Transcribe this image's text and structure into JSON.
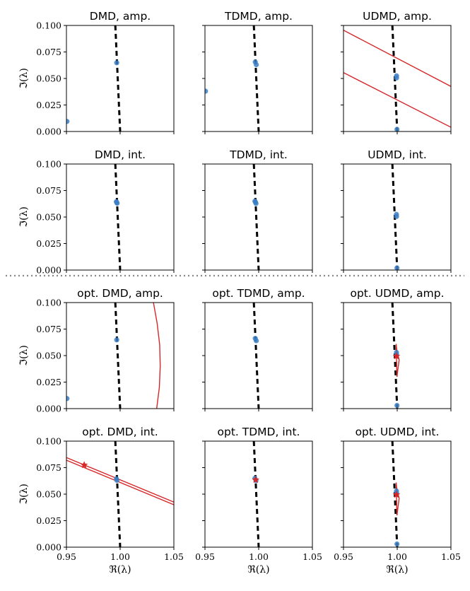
{
  "figure": {
    "xlim": [
      0.95,
      1.05
    ],
    "ylim": [
      0.0,
      0.1
    ],
    "xticks": [
      "0.95",
      "1.00",
      "1.05"
    ],
    "yticks": [
      "0.000",
      "0.025",
      "0.050",
      "0.075",
      "0.100"
    ],
    "xlabel": "ℜ(λ)",
    "ylabel": "ℑ(λ)",
    "colors": {
      "points": "#3b7fc4",
      "reference": "#000000",
      "boundary": "#d62728",
      "separator": "#888888"
    }
  },
  "reference_curve": {
    "x": [
      0.9955,
      1.0
    ],
    "y": [
      0.1,
      0.0
    ]
  },
  "chart_data": [
    {
      "type": "scatter",
      "title": "DMD, amp.",
      "points": [
        [
          0.9968,
          0.0648
        ],
        [
          0.9505,
          0.0095
        ]
      ]
    },
    {
      "type": "scatter",
      "title": "TDMD, amp.",
      "points": [
        [
          0.9968,
          0.0655
        ],
        [
          0.9978,
          0.063
        ],
        [
          0.9505,
          0.038
        ]
      ]
    },
    {
      "type": "scatter",
      "title": "UDMD, amp.",
      "points": [
        [
          0.9994,
          0.0525
        ],
        [
          0.9994,
          0.0505
        ],
        [
          0.9998,
          0.002
        ]
      ],
      "boundary": [
        {
          "x": [
            0.95,
            1.05
          ],
          "y": [
            0.0955,
            0.0425
          ]
        },
        {
          "x": [
            0.95,
            1.05
          ],
          "y": [
            0.0555,
            0.004
          ]
        }
      ]
    },
    {
      "type": "scatter",
      "title": "DMD, int.",
      "points": [
        [
          0.9965,
          0.0645
        ],
        [
          0.9972,
          0.063
        ],
        [
          0.9968,
          0.0638
        ]
      ]
    },
    {
      "type": "scatter",
      "title": "TDMD, int.",
      "points": [
        [
          0.9965,
          0.065
        ],
        [
          0.9975,
          0.0628
        ],
        [
          0.997,
          0.064
        ]
      ]
    },
    {
      "type": "scatter",
      "title": "UDMD, int.",
      "points": [
        [
          0.9993,
          0.0525
        ],
        [
          0.9994,
          0.0505
        ],
        [
          0.9998,
          0.002
        ]
      ]
    },
    {
      "type": "scatter",
      "title": "opt. DMD, amp.",
      "points": [
        [
          0.9968,
          0.0648
        ],
        [
          0.9505,
          0.0095
        ]
      ],
      "boundary": [
        {
          "x": [
            1.031,
            1.0345,
            1.0368,
            1.0373,
            1.0365,
            1.034
          ],
          "y": [
            0.1,
            0.08,
            0.06,
            0.04,
            0.02,
            0.0
          ]
        }
      ]
    },
    {
      "type": "scatter",
      "title": "opt. TDMD, amp.",
      "points": [
        [
          0.9968,
          0.0662
        ],
        [
          0.9978,
          0.064
        ]
      ]
    },
    {
      "type": "scatter",
      "title": "opt. UDMD, amp.",
      "points": [
        [
          0.9993,
          0.053
        ],
        [
          0.9994,
          0.051
        ],
        [
          0.9998,
          0.003
        ]
      ],
      "boundary": [
        {
          "x": [
            0.999,
            0.9995,
            1.0018,
            1.0005,
            0.9998,
            0.999
          ],
          "y": [
            0.061,
            0.056,
            0.046,
            0.036,
            0.03,
            0.061
          ]
        }
      ],
      "stars": [
        [
          0.9993,
          0.0495
        ]
      ]
    },
    {
      "type": "scatter",
      "title": "opt. DMD, int.",
      "points": [
        [
          0.9965,
          0.0645
        ],
        [
          0.997,
          0.063
        ]
      ],
      "boundary": [
        {
          "x": [
            0.95,
            1.05
          ],
          "y": [
            0.0845,
            0.0425
          ]
        },
        {
          "x": [
            0.95,
            1.05
          ],
          "y": [
            0.082,
            0.04
          ]
        }
      ],
      "stars": [
        [
          0.9665,
          0.0775
        ]
      ]
    },
    {
      "type": "scatter",
      "title": "opt. TDMD, int.",
      "points": [
        [
          0.9965,
          0.065
        ],
        [
          0.9975,
          0.0628
        ]
      ],
      "stars": [
        [
          0.9972,
          0.0635
        ]
      ]
    },
    {
      "type": "scatter",
      "title": "opt. UDMD, int.",
      "points": [
        [
          0.9993,
          0.053
        ],
        [
          0.9994,
          0.051
        ],
        [
          0.9998,
          0.003
        ]
      ],
      "boundary": [
        {
          "x": [
            0.999,
            0.9995,
            1.0018,
            1.0005,
            0.9998,
            0.999
          ],
          "y": [
            0.061,
            0.056,
            0.046,
            0.036,
            0.03,
            0.061
          ]
        }
      ],
      "stars": [
        [
          0.9993,
          0.0495
        ]
      ]
    }
  ]
}
